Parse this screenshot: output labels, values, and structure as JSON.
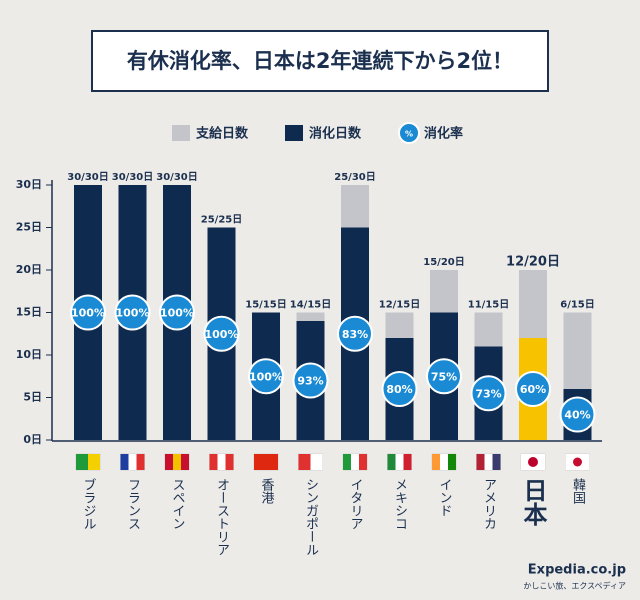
{
  "chart_data": {
    "type": "bar",
    "title": "有休消化率、日本は2年連続下から2位！",
    "categories": [
      "ブラジル",
      "フランス",
      "スペイン",
      "オーストリア",
      "香港",
      "シンガポール",
      "イタリア",
      "メキシコ",
      "インド",
      "アメリカ",
      "日本",
      "韓国"
    ],
    "series": [
      {
        "name": "支給日数",
        "color": "#c3c5cb",
        "values": [
          30,
          30,
          30,
          25,
          15,
          15,
          30,
          15,
          20,
          15,
          20,
          15
        ]
      },
      {
        "name": "消化日数",
        "color": "#0f2a4f",
        "values": [
          30,
          30,
          30,
          25,
          15,
          14,
          25,
          12,
          15,
          11,
          12,
          6
        ]
      },
      {
        "name": "消化率",
        "color": "#1a8ad4",
        "values": [
          100,
          100,
          100,
          100,
          100,
          93,
          83,
          80,
          75,
          73,
          60,
          40
        ],
        "value_labels": [
          "100%",
          "100%",
          "100%",
          "100%",
          "100%",
          "93%",
          "83%",
          "80%",
          "75%",
          "73%",
          "60%",
          "40%"
        ]
      }
    ],
    "bar_labels": [
      "30/30日",
      "30/30日",
      "30/30日",
      "25/25日",
      "15/15日",
      "14/15日",
      "25/30日",
      "12/15日",
      "15/20日",
      "11/15日",
      "12/20日",
      "6/15日"
    ],
    "ylim": [
      0,
      30
    ],
    "yticks": [
      {
        "value": 0,
        "label": "0日"
      },
      {
        "value": 5,
        "label": "5日"
      },
      {
        "value": 10,
        "label": "10日"
      },
      {
        "value": 15,
        "label": "15日"
      },
      {
        "value": 20,
        "label": "20日"
      },
      {
        "value": 25,
        "label": "25日"
      },
      {
        "value": 30,
        "label": "30日"
      }
    ],
    "highlight_category": "日本",
    "highlight_color": "#f7c300",
    "legend_icon_label": "%",
    "source": [
      "Expedia.co.jp",
      "かしこい旅、エクスペディア"
    ]
  }
}
